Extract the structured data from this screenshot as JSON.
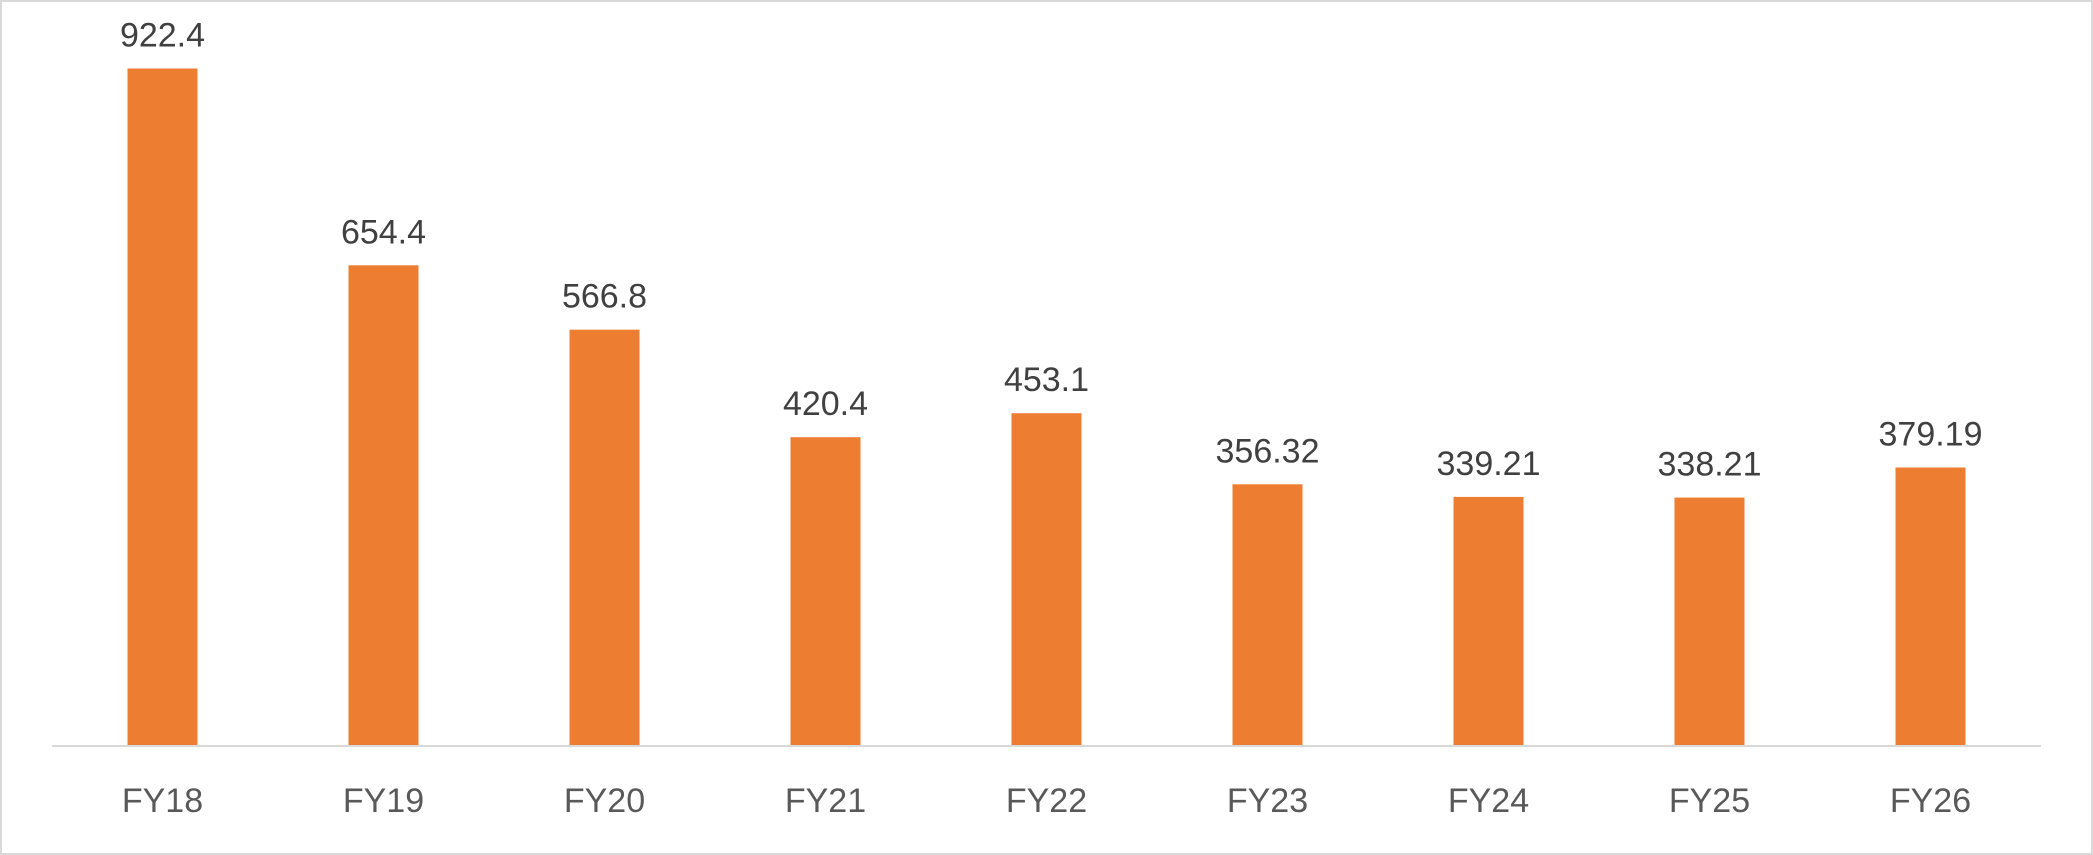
{
  "chart_data": {
    "type": "bar",
    "categories": [
      "FY18",
      "FY19",
      "FY20",
      "FY21",
      "FY22",
      "FY23",
      "FY24",
      "FY25",
      "FY26"
    ],
    "values": [
      922.4,
      654.4,
      566.8,
      420.4,
      453.1,
      356.32,
      339.21,
      338.21,
      379.19
    ],
    "value_labels": [
      "922.4",
      "654.4",
      "566.8",
      "420.4",
      "453.1",
      "356.32",
      "339.21",
      "338.21",
      "379.19"
    ],
    "title": "",
    "xlabel": "",
    "ylabel": "",
    "ylim": [
      0,
      1000
    ],
    "grid": false,
    "legend": "none",
    "colors": {
      "bar": "#ED7D31",
      "axis": "#D9D9D9",
      "value_text": "#404040",
      "category_text": "#595959"
    }
  }
}
